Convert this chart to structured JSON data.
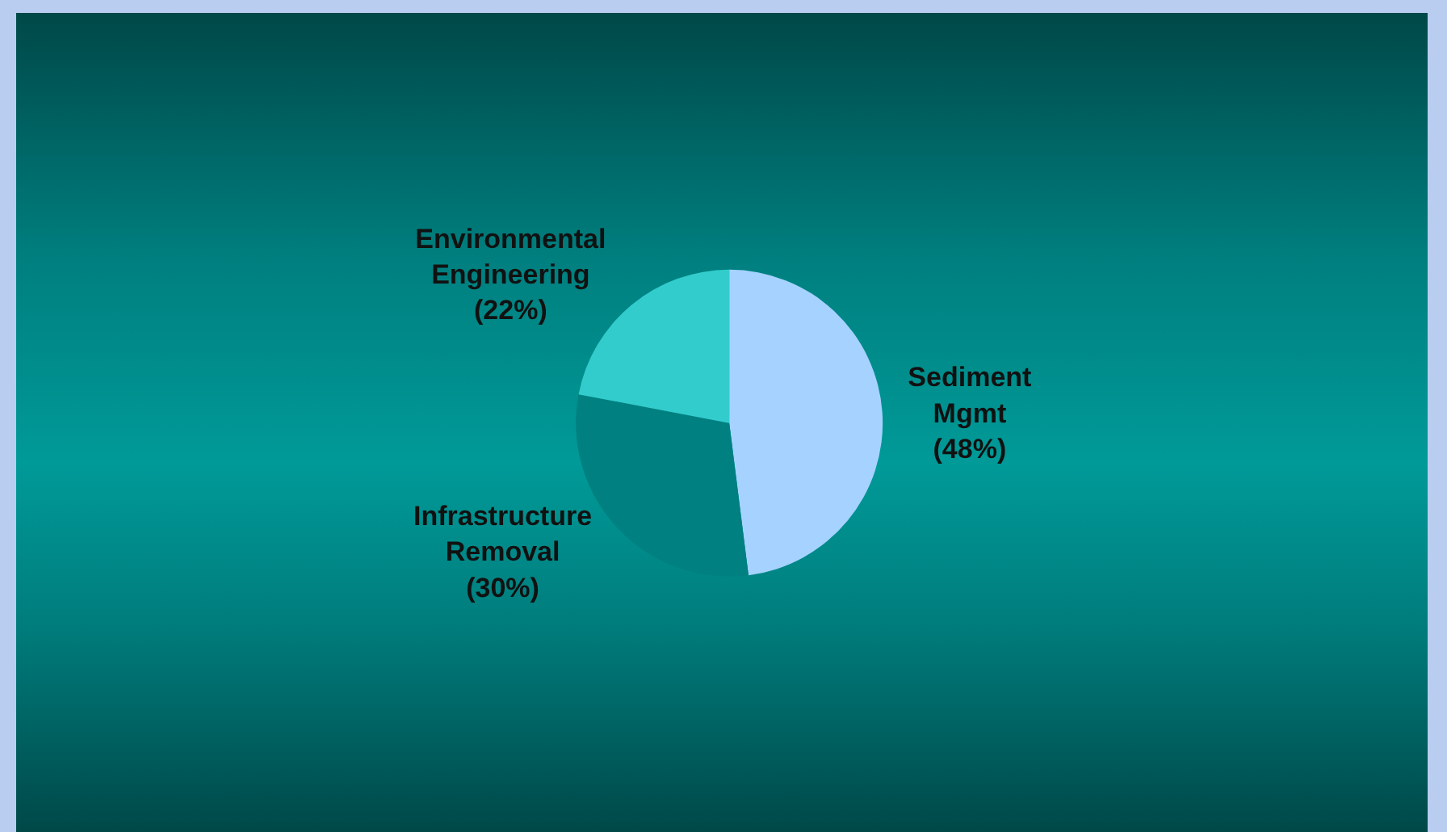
{
  "chart_data": {
    "type": "pie",
    "categories": [
      "Sediment Mgmt",
      "Infrastructure Removal",
      "Environmental Engineering"
    ],
    "values": [
      48,
      30,
      22
    ],
    "colors": [
      "#a6d2ff",
      "#008080",
      "#33cccc"
    ],
    "value_labels": [
      "(48%)",
      "(30%)",
      "(22%)"
    ],
    "legend": false
  }
}
